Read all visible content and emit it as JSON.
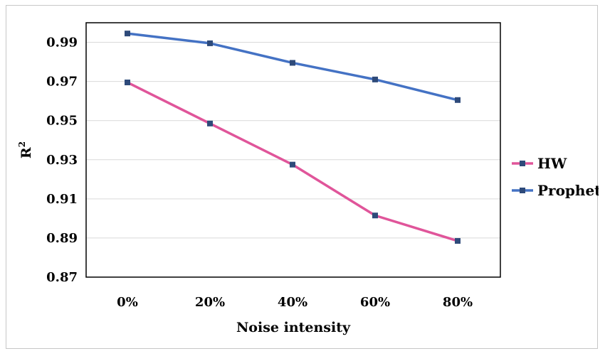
{
  "chart_data": {
    "type": "line",
    "xlabel": "Noise intensity",
    "ylabel": "R",
    "ylabel_superscript": "2",
    "categories": [
      "0%",
      "20%",
      "40%",
      "60%",
      "80%"
    ],
    "ylim": [
      0.87,
      1.0
    ],
    "yticks": [
      0.87,
      0.89,
      0.91,
      0.93,
      0.95,
      0.97,
      0.99
    ],
    "ytick_labels": [
      "0.87",
      "0.89",
      "0.91",
      "0.93",
      "0.95",
      "0.97",
      "0.99"
    ],
    "grid": true,
    "legend_position": "right",
    "series": [
      {
        "name": "HW",
        "color": "#e0559a",
        "marker_color": "#2e4a7a",
        "values": [
          0.9695,
          0.9485,
          0.9275,
          0.9015,
          0.8885
        ]
      },
      {
        "name": "Prophet",
        "color": "#4472c4",
        "marker_color": "#2e4a7a",
        "values": [
          0.9945,
          0.9895,
          0.9795,
          0.971,
          0.9605
        ]
      }
    ]
  }
}
